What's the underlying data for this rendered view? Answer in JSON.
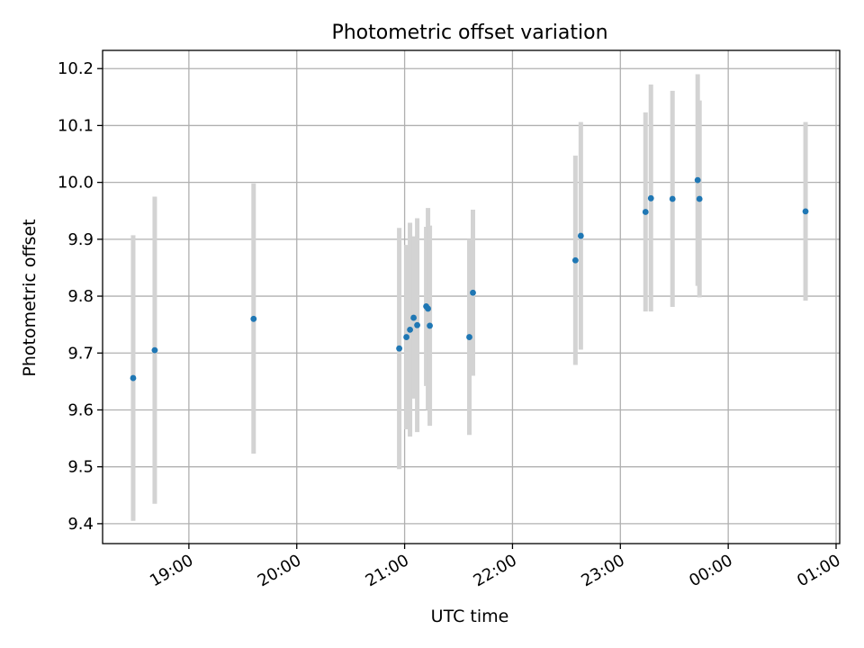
{
  "chart_data": {
    "type": "scatter",
    "title": "Photometric offset variation",
    "xlabel": "UTC time",
    "ylabel": "Photometric offset",
    "x_unit": "time (HH:MM, UTC)",
    "xlim": [
      "18:12",
      "25:02"
    ],
    "ylim": [
      9.365,
      10.232
    ],
    "xticks": [
      {
        "t": "19:00",
        "label": "19:00"
      },
      {
        "t": "20:00",
        "label": "20:00"
      },
      {
        "t": "21:00",
        "label": "21:00"
      },
      {
        "t": "22:00",
        "label": "22:00"
      },
      {
        "t": "23:00",
        "label": "23:00"
      },
      {
        "t": "24:00",
        "label": "00:00"
      },
      {
        "t": "25:00",
        "label": "01:00"
      }
    ],
    "yticks": [
      {
        "v": 9.4,
        "label": "9.4"
      },
      {
        "v": 9.5,
        "label": "9.5"
      },
      {
        "v": 9.6,
        "label": "9.6"
      },
      {
        "v": 9.7,
        "label": "9.7"
      },
      {
        "v": 9.8,
        "label": "9.8"
      },
      {
        "v": 9.9,
        "label": "9.9"
      },
      {
        "v": 10.0,
        "label": "10.0"
      },
      {
        "v": 10.1,
        "label": "10.1"
      },
      {
        "v": 10.2,
        "label": "10.2"
      }
    ],
    "grid": true,
    "legend": "none",
    "colors": {
      "marker": "#1f77b4",
      "errorbar": "#d3d3d3",
      "grid": "#b0b0b0"
    },
    "points": [
      {
        "t": "18:29",
        "y": 9.656,
        "lo": 9.405,
        "hi": 9.907
      },
      {
        "t": "18:41",
        "y": 9.705,
        "lo": 9.435,
        "hi": 9.975
      },
      {
        "t": "19:36",
        "y": 9.76,
        "lo": 9.523,
        "hi": 9.998
      },
      {
        "t": "20:57",
        "y": 9.708,
        "lo": 9.496,
        "hi": 9.92
      },
      {
        "t": "21:01",
        "y": 9.728,
        "lo": 9.566,
        "hi": 9.89
      },
      {
        "t": "21:03",
        "y": 9.741,
        "lo": 9.553,
        "hi": 9.929
      },
      {
        "t": "21:05",
        "y": 9.762,
        "lo": 9.62,
        "hi": 9.905
      },
      {
        "t": "21:07",
        "y": 9.749,
        "lo": 9.561,
        "hi": 9.937
      },
      {
        "t": "21:12",
        "y": 9.782,
        "lo": 9.642,
        "hi": 9.922
      },
      {
        "t": "21:13",
        "y": 9.778,
        "lo": 9.6,
        "hi": 9.955
      },
      {
        "t": "21:14",
        "y": 9.748,
        "lo": 9.572,
        "hi": 9.924
      },
      {
        "t": "21:36",
        "y": 9.728,
        "lo": 9.556,
        "hi": 9.9
      },
      {
        "t": "21:38",
        "y": 9.806,
        "lo": 9.66,
        "hi": 9.952
      },
      {
        "t": "22:35",
        "y": 9.863,
        "lo": 9.679,
        "hi": 10.047
      },
      {
        "t": "22:38",
        "y": 9.906,
        "lo": 9.706,
        "hi": 10.106
      },
      {
        "t": "23:14",
        "y": 9.948,
        "lo": 9.773,
        "hi": 10.123
      },
      {
        "t": "23:17",
        "y": 9.972,
        "lo": 9.773,
        "hi": 10.172
      },
      {
        "t": "23:29",
        "y": 9.971,
        "lo": 9.781,
        "hi": 10.161
      },
      {
        "t": "23:43",
        "y": 10.004,
        "lo": 9.818,
        "hi": 10.19
      },
      {
        "t": "23:44",
        "y": 9.971,
        "lo": 9.798,
        "hi": 10.144
      },
      {
        "t": "24:43",
        "y": 9.949,
        "lo": 9.792,
        "hi": 10.106
      }
    ]
  }
}
